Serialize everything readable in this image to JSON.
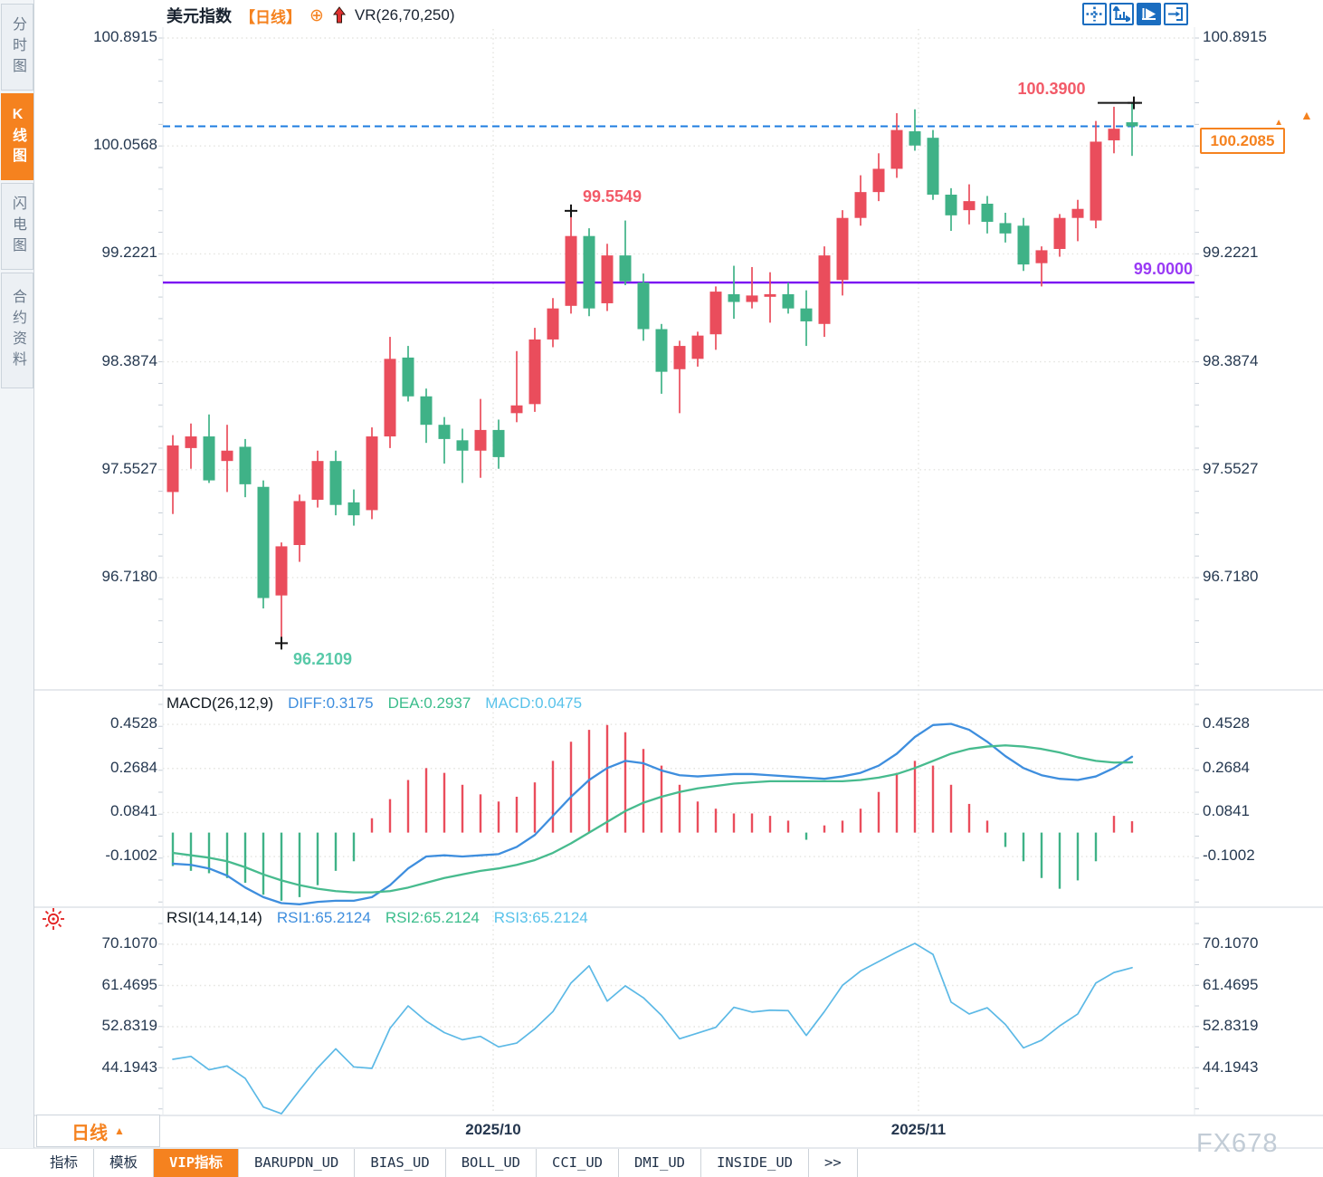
{
  "header": {
    "symbol": "美元指数",
    "period_tag": "【日线】",
    "add_icon": "⊕",
    "overlay_indicator": "VR(26,70,250)"
  },
  "toolbar_icons": [
    "crosshair-move-icon",
    "axis-zoom-icon",
    "axis-play-icon",
    "exit-right-icon"
  ],
  "sidebar": {
    "items": [
      {
        "label": "分时图",
        "active": false
      },
      {
        "label": "K线图",
        "active": true
      },
      {
        "label": "闪电图",
        "active": false
      },
      {
        "label": "合约资料",
        "active": false
      }
    ]
  },
  "main_chart": {
    "y_axis_labels": [
      "100.8915",
      "100.0568",
      "99.2221",
      "98.3874",
      "97.5527",
      "96.7180"
    ],
    "annotations": {
      "recent_high": "100.3900",
      "swing_high": "99.5549",
      "swing_low": "96.2109",
      "level_line": "99.0000"
    },
    "current_price": "100.2085",
    "scroll_to_latest_arrow": "▲"
  },
  "indicators": {
    "macd": {
      "name": "MACD(26,12,9)",
      "diff": "DIFF:0.3175",
      "dea": "DEA:0.2937",
      "macd": "MACD:0.0475",
      "y_axis_labels": [
        "0.4528",
        "0.2684",
        "0.0841",
        "-0.1002"
      ]
    },
    "rsi": {
      "name": "RSI(14,14,14)",
      "rsi1": "RSI1:65.2124",
      "rsi2": "RSI2:65.2124",
      "rsi3": "RSI3:65.2124",
      "y_axis_labels": [
        "70.1070",
        "61.4695",
        "52.8319",
        "44.1943"
      ]
    }
  },
  "x_axis": {
    "labels": [
      "2025/10",
      "2025/11"
    ]
  },
  "bottom_bar": {
    "period": "日线",
    "period_arrow": "▲",
    "active_tab": "VIP指标",
    "tabs": [
      "指标",
      "模板",
      "VIP指标",
      "BARUPDN_UD",
      "BIAS_UD",
      "BOLL_UD",
      "CCI_UD",
      "DMI_UD",
      "INSIDE_UD",
      ">>"
    ]
  },
  "watermark": "FX678",
  "colors": {
    "up": "#ea4d5c",
    "down": "#3fb287",
    "accent_orange": "#f5821f",
    "line_purple": "#7a0df2",
    "label_purple": "#9a3bf5",
    "dashed_blue": "#1e7ce0",
    "diff_blue": "#3e8ede",
    "dea_green": "#47bb8e",
    "macd_lightblue": "#58c2ea",
    "rsi_blue": "#5cb9e6",
    "icon_blue": "#1a6dc0",
    "annotation_red": "#f25a68",
    "annotation_green": "#58c9a8",
    "axis_text": "#253850",
    "marker_black": "#151515",
    "grid": "#e3e3df"
  },
  "chart_data": [
    {
      "type": "candlestick",
      "title": "美元指数 日线",
      "ylim": [
        96.05,
        100.95
      ],
      "y_ticks": [
        100.8915,
        100.0568,
        99.2221,
        98.3874,
        97.5527,
        96.718
      ],
      "x_gridline_labels": [
        "2025/10",
        "2025/11"
      ],
      "levels": {
        "support_line": 99.0,
        "current_price": 100.2085,
        "recent_high": 100.39,
        "swing_high": 99.5549,
        "swing_low": 96.2109
      },
      "ohlc": [
        [
          97.38,
          97.82,
          97.21,
          97.74
        ],
        [
          97.72,
          97.91,
          97.56,
          97.81
        ],
        [
          97.81,
          97.98,
          97.45,
          97.47
        ],
        [
          97.62,
          97.9,
          97.38,
          97.7
        ],
        [
          97.73,
          97.79,
          97.34,
          97.44
        ],
        [
          97.42,
          97.47,
          96.48,
          96.56
        ],
        [
          96.58,
          96.99,
          96.2109,
          96.96
        ],
        [
          96.97,
          97.36,
          96.84,
          97.31
        ],
        [
          97.32,
          97.7,
          97.26,
          97.62
        ],
        [
          97.62,
          97.7,
          97.2,
          97.28
        ],
        [
          97.3,
          97.4,
          97.12,
          97.2
        ],
        [
          97.24,
          97.88,
          97.17,
          97.81
        ],
        [
          97.81,
          98.58,
          97.72,
          98.41
        ],
        [
          98.42,
          98.51,
          98.08,
          98.12
        ],
        [
          98.12,
          98.18,
          97.76,
          97.9
        ],
        [
          97.9,
          97.96,
          97.6,
          97.79
        ],
        [
          97.78,
          97.87,
          97.45,
          97.7
        ],
        [
          97.7,
          98.1,
          97.49,
          97.86
        ],
        [
          97.86,
          97.94,
          97.56,
          97.65
        ],
        [
          97.99,
          98.47,
          97.92,
          98.05
        ],
        [
          98.06,
          98.65,
          98.0,
          98.56
        ],
        [
          98.56,
          98.88,
          98.5,
          98.8
        ],
        [
          98.82,
          99.5549,
          98.76,
          99.36
        ],
        [
          99.36,
          99.42,
          98.74,
          98.8
        ],
        [
          98.84,
          99.3,
          98.78,
          99.21
        ],
        [
          99.21,
          99.48,
          98.98,
          99.01
        ],
        [
          99.0,
          99.07,
          98.55,
          98.64
        ],
        [
          98.64,
          98.68,
          98.14,
          98.31
        ],
        [
          98.33,
          98.55,
          97.99,
          98.51
        ],
        [
          98.41,
          98.62,
          98.35,
          98.59
        ],
        [
          98.6,
          98.97,
          98.48,
          98.93
        ],
        [
          98.91,
          99.13,
          98.72,
          98.85
        ],
        [
          98.85,
          99.12,
          98.8,
          98.9
        ],
        [
          98.89,
          99.08,
          98.69,
          98.91
        ],
        [
          98.91,
          99.0,
          98.76,
          98.8
        ],
        [
          98.8,
          98.94,
          98.51,
          98.7
        ],
        [
          98.68,
          99.28,
          98.58,
          99.21
        ],
        [
          99.02,
          99.56,
          98.9,
          99.5
        ],
        [
          99.5,
          99.83,
          99.44,
          99.7
        ],
        [
          99.7,
          100.0,
          99.63,
          99.88
        ],
        [
          99.88,
          100.31,
          99.81,
          100.18
        ],
        [
          100.17,
          100.34,
          100.02,
          100.06
        ],
        [
          100.12,
          100.18,
          99.64,
          99.68
        ],
        [
          99.68,
          99.73,
          99.4,
          99.52
        ],
        [
          99.56,
          99.76,
          99.45,
          99.63
        ],
        [
          99.61,
          99.67,
          99.38,
          99.47
        ],
        [
          99.46,
          99.54,
          99.31,
          99.38
        ],
        [
          99.44,
          99.5,
          99.09,
          99.14
        ],
        [
          99.15,
          99.28,
          98.97,
          99.25
        ],
        [
          99.26,
          99.53,
          99.2,
          99.5
        ],
        [
          99.5,
          99.64,
          99.32,
          99.57
        ],
        [
          99.48,
          100.25,
          99.42,
          100.09
        ],
        [
          100.1,
          100.36,
          100.0,
          100.19
        ],
        [
          100.24,
          100.39,
          99.98,
          100.2085
        ]
      ]
    },
    {
      "type": "bar",
      "title": "MACD(26,12,9)",
      "y_ticks": [
        0.4528,
        0.2684,
        0.0841,
        -0.1002
      ],
      "series": [
        {
          "name": "MACD",
          "type": "bar",
          "values": [
            -0.14,
            -0.16,
            -0.17,
            -0.19,
            -0.21,
            -0.26,
            -0.285,
            -0.27,
            -0.22,
            -0.16,
            -0.12,
            0.06,
            0.14,
            0.22,
            0.27,
            0.25,
            0.2,
            0.16,
            0.13,
            0.15,
            0.21,
            0.3,
            0.38,
            0.43,
            0.45,
            0.42,
            0.35,
            0.28,
            0.2,
            0.13,
            0.1,
            0.08,
            0.08,
            0.07,
            0.05,
            -0.03,
            0.03,
            0.05,
            0.1,
            0.17,
            0.25,
            0.3,
            0.28,
            0.2,
            0.12,
            0.05,
            -0.06,
            -0.12,
            -0.19,
            -0.235,
            -0.2,
            -0.12,
            0.07,
            0.0475
          ]
        },
        {
          "name": "DIFF",
          "type": "line",
          "values": [
            -0.13,
            -0.135,
            -0.15,
            -0.18,
            -0.23,
            -0.27,
            -0.295,
            -0.3,
            -0.29,
            -0.285,
            -0.285,
            -0.27,
            -0.22,
            -0.15,
            -0.1,
            -0.095,
            -0.1,
            -0.095,
            -0.09,
            -0.06,
            -0.01,
            0.07,
            0.15,
            0.22,
            0.27,
            0.3,
            0.29,
            0.26,
            0.24,
            0.235,
            0.24,
            0.245,
            0.245,
            0.24,
            0.235,
            0.23,
            0.225,
            0.235,
            0.25,
            0.28,
            0.33,
            0.4,
            0.45,
            0.455,
            0.43,
            0.38,
            0.32,
            0.27,
            0.24,
            0.225,
            0.22,
            0.235,
            0.27,
            0.3175
          ]
        },
        {
          "name": "DEA",
          "type": "line",
          "values": [
            -0.085,
            -0.095,
            -0.105,
            -0.12,
            -0.145,
            -0.175,
            -0.2,
            -0.22,
            -0.235,
            -0.245,
            -0.25,
            -0.25,
            -0.245,
            -0.23,
            -0.21,
            -0.19,
            -0.175,
            -0.16,
            -0.15,
            -0.135,
            -0.115,
            -0.085,
            -0.045,
            0.0,
            0.045,
            0.09,
            0.125,
            0.15,
            0.17,
            0.185,
            0.195,
            0.205,
            0.21,
            0.215,
            0.215,
            0.215,
            0.215,
            0.215,
            0.22,
            0.23,
            0.245,
            0.27,
            0.3,
            0.33,
            0.35,
            0.36,
            0.365,
            0.36,
            0.35,
            0.335,
            0.315,
            0.3,
            0.293,
            0.2937
          ]
        }
      ]
    },
    {
      "type": "line",
      "title": "RSI(14,14,14)",
      "y_ticks": [
        70.107,
        61.4695,
        52.8319,
        44.1943
      ],
      "series": [
        {
          "name": "RSI1 (RSI2/RSI3 coincident)",
          "values": [
            46.0,
            46.6,
            43.8,
            44.6,
            42.0,
            36.0,
            34.6,
            39.5,
            44.2,
            48.2,
            44.4,
            44.1,
            52.5,
            57.2,
            54.0,
            51.6,
            50.1,
            50.8,
            48.6,
            49.4,
            52.4,
            56.0,
            62.0,
            65.6,
            58.2,
            61.4,
            58.9,
            55.2,
            50.3,
            51.5,
            52.7,
            56.9,
            55.9,
            56.3,
            56.2,
            51.0,
            56.0,
            61.5,
            64.5,
            66.5,
            68.5,
            70.3,
            68.0,
            58.0,
            55.5,
            56.8,
            53.3,
            48.4,
            50.0,
            53.0,
            55.5,
            62.0,
            64.2,
            65.2124
          ]
        }
      ]
    }
  ]
}
